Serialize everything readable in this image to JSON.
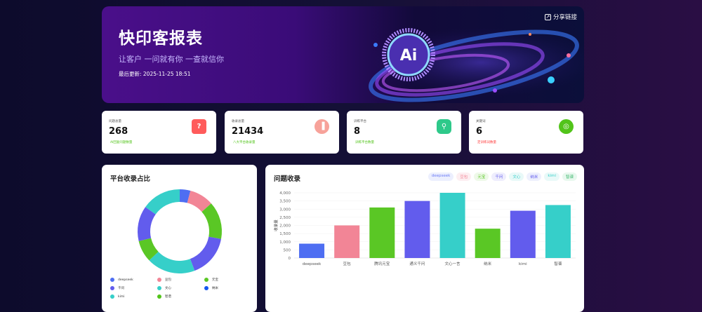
{
  "banner": {
    "title": "快印客报表",
    "subtitle": "让客户 一问就有你 一查就信你",
    "updated": "最后更新: 2025-11-25 18:51",
    "share_label": "分享链接",
    "logo_text": "Ai"
  },
  "stats": [
    {
      "label": "问题总量",
      "value": "268",
      "sub": "AI回复问题数量",
      "sub_color": "#52c41a",
      "icon": "question-bubble-icon",
      "icon_color": "#ff5b5b"
    },
    {
      "label": "收录总量",
      "value": "21434",
      "sub": "八大平台收录量",
      "sub_color": "#52c41a",
      "icon": "bar-chart-icon",
      "icon_color": "#f7a29a"
    },
    {
      "label": "训练平台",
      "value": "8",
      "sub": "训练平台数量",
      "sub_color": "#52c41a",
      "icon": "search-question-icon",
      "icon_color": "#2ec98a"
    },
    {
      "label": "关键词",
      "value": "6",
      "sub": "定训练词数量",
      "sub_color": "#ff3b3b",
      "icon": "target-icon",
      "icon_color": "#52c41a"
    }
  ],
  "donut": {
    "title": "平台收录占比",
    "legend": [
      {
        "label": "deepseek",
        "color": "#4e6ef2"
      },
      {
        "label": "豆包",
        "color": "#f28596"
      },
      {
        "label": "元宝",
        "color": "#5ac725"
      },
      {
        "label": "千问",
        "color": "#625ced"
      },
      {
        "label": "文心",
        "color": "#36cfc9"
      },
      {
        "label": "纳米",
        "color": "#1456f0"
      },
      {
        "label": "kimi",
        "color": "#36cfc9"
      },
      {
        "label": "智谱",
        "color": "#52c41a"
      }
    ]
  },
  "bar": {
    "title": "问题收录",
    "tags": [
      {
        "label": "deepseek",
        "color": "#6c7cf5",
        "bg": "#eceffe"
      },
      {
        "label": "豆包",
        "color": "#f28596",
        "bg": "#fdeef1"
      },
      {
        "label": "元宝",
        "color": "#5ac725",
        "bg": "#eef9e8"
      },
      {
        "label": "千问",
        "color": "#625ced",
        "bg": "#eeedfd"
      },
      {
        "label": "文心",
        "color": "#36cfc9",
        "bg": "#e8f9f8"
      },
      {
        "label": "纳米",
        "color": "#625ced",
        "bg": "#eef0fd"
      },
      {
        "label": "kimi",
        "color": "#36cfc9",
        "bg": "#e9f9f8"
      },
      {
        "label": "智谱",
        "color": "#3fb870",
        "bg": "#e8f8ee"
      }
    ]
  },
  "chart_data": {
    "type": "bar",
    "title": "问题收录",
    "ylabel": "收录量",
    "ylim": [
      0,
      4000
    ],
    "yticks": [
      "0",
      "500",
      "1,000",
      "1,500",
      "2,000",
      "2,500",
      "3,000",
      "3,500",
      "4,000"
    ],
    "categories": [
      "deepseek",
      "豆包",
      "腾讯元宝",
      "通义千问",
      "文心一言",
      "纳米",
      "kimi",
      "智谱"
    ],
    "values": [
      880,
      2000,
      3100,
      3500,
      4000,
      1800,
      2900,
      3250
    ],
    "colors": [
      "#4e6ef2",
      "#f28596",
      "#5ac725",
      "#625ced",
      "#36cfc9",
      "#5ac725",
      "#625ced",
      "#36cfc9"
    ],
    "grid": true
  }
}
